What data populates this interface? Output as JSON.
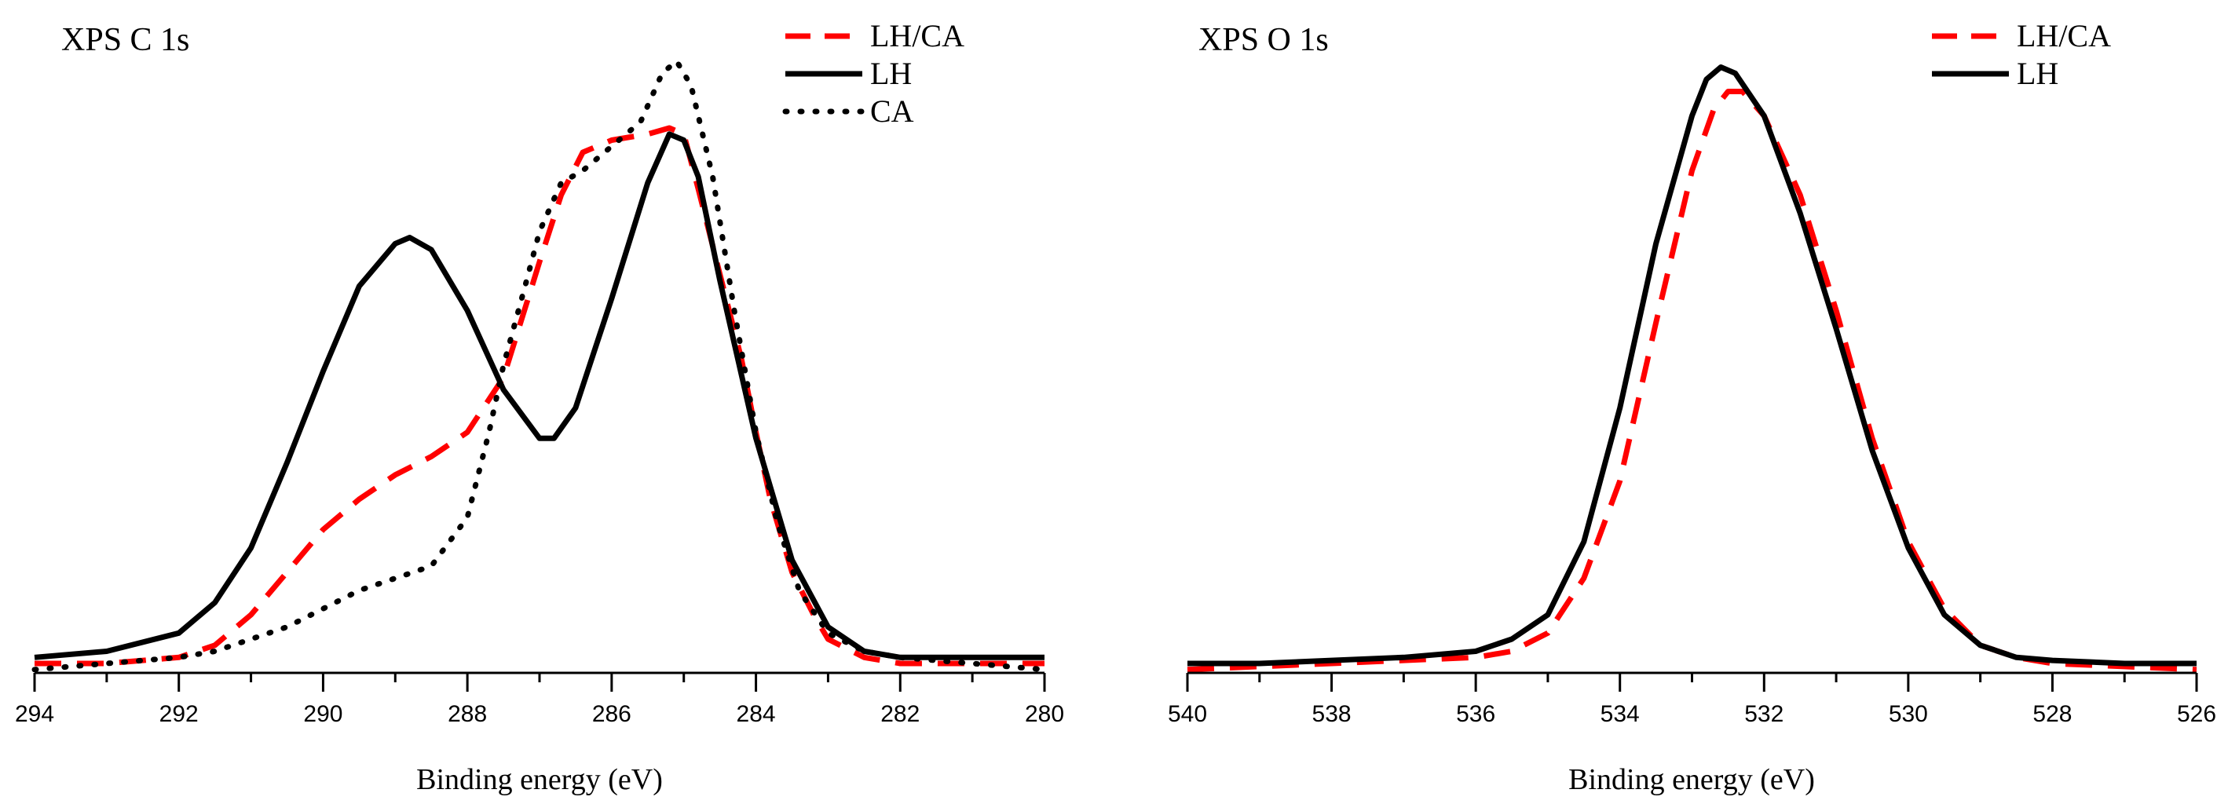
{
  "chart_data": [
    {
      "type": "line",
      "title": "XPS C 1s",
      "xlabel": "Binding energy (eV)",
      "ylabel": "",
      "xlim": [
        294,
        280
      ],
      "ylim": [
        0,
        1.0
      ],
      "x_reversed": true,
      "x_ticks": [
        294,
        292,
        290,
        288,
        286,
        284,
        282,
        280
      ],
      "x_tick_labels": [
        "294",
        "292",
        "290",
        "288",
        "286",
        "284",
        "282",
        "280"
      ],
      "legend_position": "top-right",
      "series": [
        {
          "name": "LH/CA",
          "style": "dashed",
          "color": "#ff0000",
          "x": [
            294,
            293,
            292,
            291.5,
            291,
            290.5,
            290,
            289.5,
            289,
            288.5,
            288,
            287.5,
            287,
            286.7,
            286.4,
            286,
            285.5,
            285.2,
            285,
            284.8,
            284.5,
            284.2,
            284,
            283.8,
            283.5,
            283.2,
            283,
            282.5,
            282,
            281,
            280
          ],
          "y": [
            0.0,
            0.0,
            0.01,
            0.03,
            0.08,
            0.15,
            0.22,
            0.27,
            0.31,
            0.34,
            0.38,
            0.47,
            0.66,
            0.77,
            0.84,
            0.86,
            0.87,
            0.88,
            0.87,
            0.78,
            0.64,
            0.5,
            0.38,
            0.27,
            0.15,
            0.08,
            0.04,
            0.01,
            0.0,
            0.0,
            0.0
          ]
        },
        {
          "name": "LH",
          "style": "solid",
          "color": "#000000",
          "x": [
            294,
            293,
            292,
            291.5,
            291,
            290.5,
            290,
            289.5,
            289,
            288.8,
            288.5,
            288,
            287.5,
            287,
            286.8,
            286.5,
            286,
            285.5,
            285.2,
            285,
            284.8,
            284.5,
            284,
            283.5,
            283,
            282.5,
            282,
            281,
            280
          ],
          "y": [
            0.01,
            0.02,
            0.05,
            0.1,
            0.19,
            0.33,
            0.48,
            0.62,
            0.69,
            0.7,
            0.68,
            0.58,
            0.45,
            0.37,
            0.37,
            0.42,
            0.6,
            0.79,
            0.87,
            0.86,
            0.8,
            0.63,
            0.37,
            0.17,
            0.06,
            0.02,
            0.01,
            0.01,
            0.01
          ]
        },
        {
          "name": "CA",
          "style": "dotted",
          "color": "#000000",
          "x": [
            294,
            293,
            292,
            291.5,
            291,
            290.5,
            290,
            289.5,
            289,
            288.5,
            288,
            287.7,
            287.5,
            287.2,
            287,
            286.7,
            286.4,
            286,
            285.6,
            285.3,
            285.1,
            284.9,
            284.6,
            284.3,
            284,
            283.7,
            283.4,
            283,
            282.5,
            282,
            281,
            280
          ],
          "y": [
            -0.01,
            0.0,
            0.01,
            0.02,
            0.04,
            0.06,
            0.09,
            0.12,
            0.14,
            0.16,
            0.24,
            0.38,
            0.49,
            0.62,
            0.71,
            0.79,
            0.81,
            0.85,
            0.89,
            0.97,
            0.99,
            0.95,
            0.8,
            0.58,
            0.38,
            0.23,
            0.12,
            0.05,
            0.02,
            0.01,
            0.0,
            -0.01
          ]
        }
      ]
    },
    {
      "type": "line",
      "title": "XPS O 1s",
      "xlabel": "Binding energy (eV)",
      "ylabel": "",
      "xlim": [
        540,
        526
      ],
      "ylim": [
        0,
        1.0
      ],
      "x_reversed": true,
      "x_ticks": [
        540,
        538,
        536,
        534,
        532,
        530,
        528,
        526
      ],
      "x_tick_labels": [
        "540",
        "538",
        "536",
        "534",
        "532",
        "530",
        "528",
        "526"
      ],
      "legend_position": "top-right",
      "series": [
        {
          "name": "LH/CA",
          "style": "dashed",
          "color": "#ff0000",
          "x": [
            540,
            539,
            538,
            537,
            536,
            535.5,
            535,
            534.5,
            534,
            533.5,
            533,
            532.7,
            532.5,
            532.3,
            532,
            531.5,
            531,
            530.5,
            530,
            529.5,
            529,
            528.5,
            528,
            527,
            526
          ],
          "y": [
            -0.01,
            -0.005,
            0.0,
            0.005,
            0.01,
            0.02,
            0.05,
            0.14,
            0.3,
            0.56,
            0.81,
            0.91,
            0.94,
            0.94,
            0.9,
            0.77,
            0.58,
            0.37,
            0.2,
            0.09,
            0.03,
            0.01,
            0.0,
            -0.005,
            -0.01
          ]
        },
        {
          "name": "LH",
          "style": "solid",
          "color": "#000000",
          "x": [
            540,
            539,
            538,
            537,
            536,
            535.5,
            535,
            534.5,
            534,
            533.5,
            533,
            532.8,
            532.6,
            532.4,
            532,
            531.5,
            531,
            530.5,
            530,
            529.5,
            529,
            528.5,
            528,
            527,
            526
          ],
          "y": [
            0.0,
            0.0,
            0.005,
            0.01,
            0.02,
            0.04,
            0.08,
            0.2,
            0.42,
            0.69,
            0.9,
            0.96,
            0.98,
            0.97,
            0.9,
            0.74,
            0.55,
            0.35,
            0.19,
            0.08,
            0.03,
            0.01,
            0.005,
            0.0,
            0.0
          ]
        }
      ]
    }
  ]
}
